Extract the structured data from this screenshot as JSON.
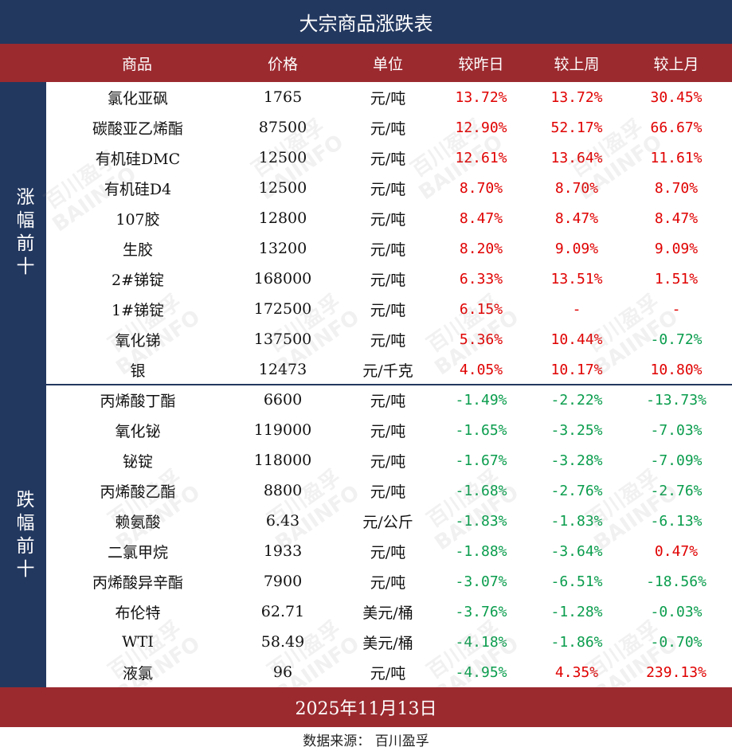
{
  "title": "大宗商品涨跌表",
  "headers": [
    "商品",
    "价格",
    "单位",
    "较昨日",
    "较上周",
    "较上月"
  ],
  "sections": {
    "up_label": "涨幅前十",
    "down_label": "跌幅前十"
  },
  "colors": {
    "navy": "#23385f",
    "red_band": "#9b2a2f",
    "up": "#e00000",
    "down": "#0a9d4d"
  },
  "rows": [
    {
      "name": "氯化亚砜",
      "price": "1765",
      "unit": "元/吨",
      "d": "13.72%",
      "w": "13.72%",
      "m": "30.45%"
    },
    {
      "name": "碳酸亚乙烯酯",
      "price": "87500",
      "unit": "元/吨",
      "d": "12.90%",
      "w": "52.17%",
      "m": "66.67%"
    },
    {
      "name": "有机硅DMC",
      "price": "12500",
      "unit": "元/吨",
      "d": "12.61%",
      "w": "13.64%",
      "m": "11.61%"
    },
    {
      "name": "有机硅D4",
      "price": "12500",
      "unit": "元/吨",
      "d": "8.70%",
      "w": "8.70%",
      "m": "8.70%"
    },
    {
      "name": "107胶",
      "price": "12800",
      "unit": "元/吨",
      "d": "8.47%",
      "w": "8.47%",
      "m": "8.47%"
    },
    {
      "name": "生胶",
      "price": "13200",
      "unit": "元/吨",
      "d": "8.20%",
      "w": "9.09%",
      "m": "9.09%"
    },
    {
      "name": "2#锑锭",
      "price": "168000",
      "unit": "元/吨",
      "d": "6.33%",
      "w": "13.51%",
      "m": "1.51%"
    },
    {
      "name": "1#锑锭",
      "price": "172500",
      "unit": "元/吨",
      "d": "6.15%",
      "w": "-",
      "m": "-"
    },
    {
      "name": "氧化锑",
      "price": "137500",
      "unit": "元/吨",
      "d": "5.36%",
      "w": "10.44%",
      "m": "-0.72%"
    },
    {
      "name": "银",
      "price": "12473",
      "unit": "元/千克",
      "d": "4.05%",
      "w": "10.17%",
      "m": "10.80%"
    },
    {
      "name": "丙烯酸丁酯",
      "price": "6600",
      "unit": "元/吨",
      "d": "-1.49%",
      "w": "-2.22%",
      "m": "-13.73%"
    },
    {
      "name": "氧化铋",
      "price": "119000",
      "unit": "元/吨",
      "d": "-1.65%",
      "w": "-3.25%",
      "m": "-7.03%"
    },
    {
      "name": "铋锭",
      "price": "118000",
      "unit": "元/吨",
      "d": "-1.67%",
      "w": "-3.28%",
      "m": "-7.09%"
    },
    {
      "name": "丙烯酸乙酯",
      "price": "8800",
      "unit": "元/吨",
      "d": "-1.68%",
      "w": "-2.76%",
      "m": "-2.76%"
    },
    {
      "name": "赖氨酸",
      "price": "6.43",
      "unit": "元/公斤",
      "d": "-1.83%",
      "w": "-1.83%",
      "m": "-6.13%"
    },
    {
      "name": "二氯甲烷",
      "price": "1933",
      "unit": "元/吨",
      "d": "-1.88%",
      "w": "-3.64%",
      "m": "0.47%"
    },
    {
      "name": "丙烯酸异辛酯",
      "price": "7900",
      "unit": "元/吨",
      "d": "-3.07%",
      "w": "-6.51%",
      "m": "-18.56%"
    },
    {
      "name": "布伦特",
      "price": "62.71",
      "unit": "美元/桶",
      "d": "-3.76%",
      "w": "-1.28%",
      "m": "-0.03%"
    },
    {
      "name": "WTI",
      "price": "58.49",
      "unit": "美元/桶",
      "d": "-4.18%",
      "w": "-1.86%",
      "m": "-0.70%"
    },
    {
      "name": "液氯",
      "price": "96",
      "unit": "元/吨",
      "d": "-4.95%",
      "w": "4.35%",
      "m": "239.13%"
    }
  ],
  "date": "2025年11月13日",
  "source": "数据来源：  百川盈孚",
  "watermark": {
    "cn": "百川盈孚",
    "en": "BAIINFO"
  }
}
